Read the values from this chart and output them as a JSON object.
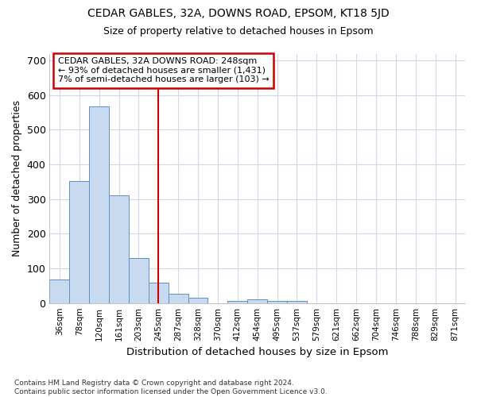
{
  "title_line1": "CEDAR GABLES, 32A, DOWNS ROAD, EPSOM, KT18 5JD",
  "title_line2": "Size of property relative to detached houses in Epsom",
  "xlabel": "Distribution of detached houses by size in Epsom",
  "ylabel": "Number of detached properties",
  "bar_labels": [
    "36sqm",
    "78sqm",
    "120sqm",
    "161sqm",
    "203sqm",
    "245sqm",
    "287sqm",
    "328sqm",
    "370sqm",
    "412sqm",
    "454sqm",
    "495sqm",
    "537sqm",
    "579sqm",
    "621sqm",
    "662sqm",
    "704sqm",
    "746sqm",
    "788sqm",
    "829sqm",
    "871sqm"
  ],
  "bar_values": [
    68,
    352,
    568,
    312,
    130,
    58,
    27,
    15,
    0,
    7,
    10,
    7,
    5,
    0,
    0,
    0,
    0,
    0,
    0,
    0,
    0
  ],
  "bar_color": "#c8daf0",
  "bar_edgecolor": "#6090c0",
  "property_line_x": 5,
  "annotation_text": "CEDAR GABLES, 32A DOWNS ROAD: 248sqm\n← 93% of detached houses are smaller (1,431)\n7% of semi-detached houses are larger (103) →",
  "vline_color": "#cc0000",
  "annotation_box_edgecolor": "#cc0000",
  "ylim": [
    0,
    720
  ],
  "yticks": [
    0,
    100,
    200,
    300,
    400,
    500,
    600,
    700
  ],
  "footer_text": "Contains HM Land Registry data © Crown copyright and database right 2024.\nContains public sector information licensed under the Open Government Licence v3.0.",
  "background_color": "#ffffff",
  "plot_background": "#ffffff",
  "grid_color": "#d0d8e8"
}
